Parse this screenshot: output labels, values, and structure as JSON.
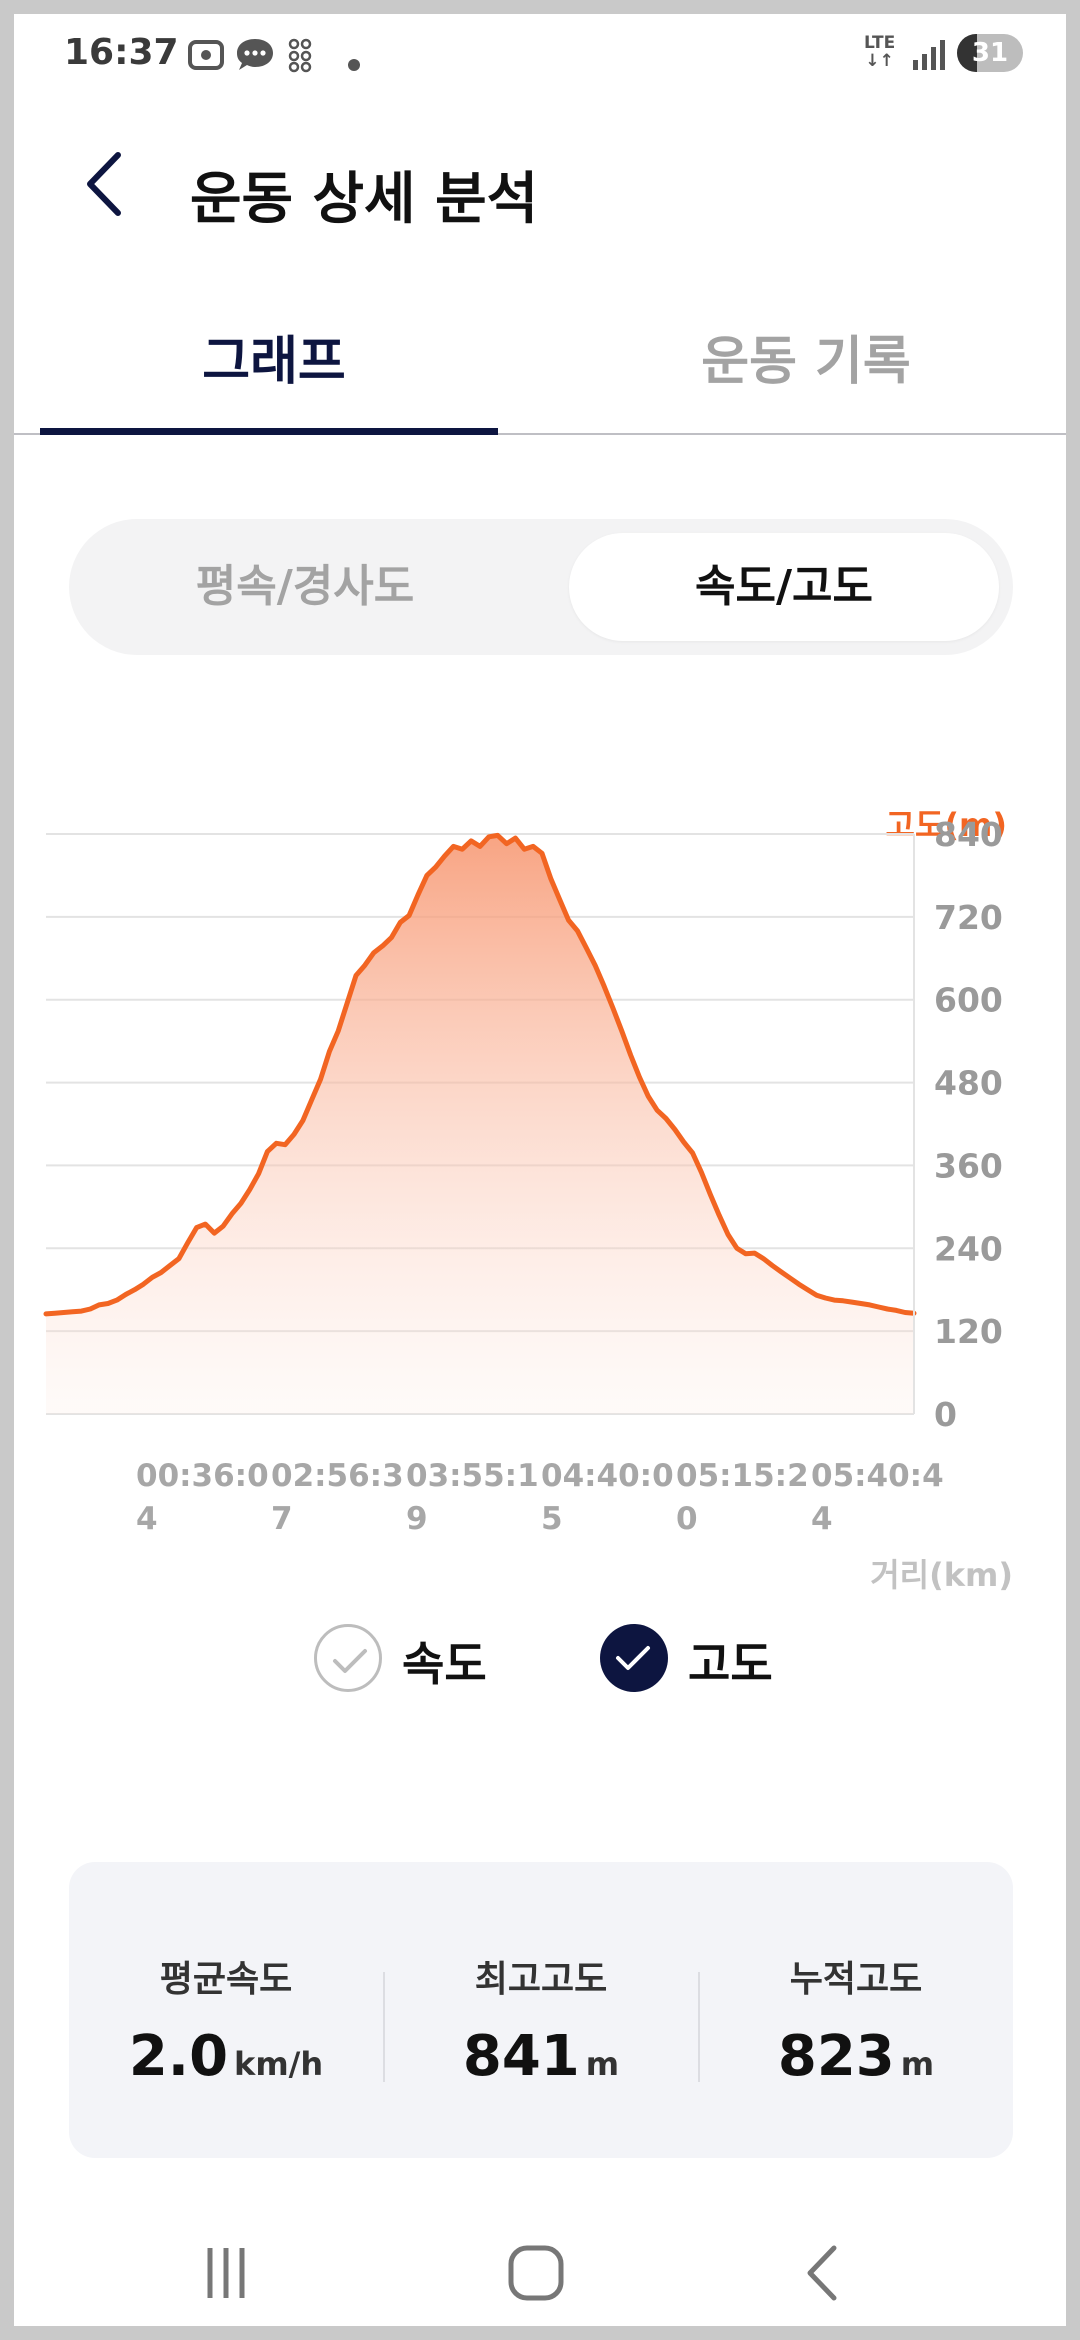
{
  "status_bar": {
    "time": "16:37",
    "network": "LTE",
    "battery": "31",
    "battery_level": 0.31
  },
  "header": {
    "title": "운동 상세 분석"
  },
  "tabs": [
    {
      "label": "그래프",
      "active": true
    },
    {
      "label": "운동 기록",
      "active": false
    }
  ],
  "segmented": {
    "left": "평속/경사도",
    "right": "속도/고도",
    "selected": "속도/고도"
  },
  "chart_data": {
    "type": "area",
    "y_axis": {
      "label": "고도(m)",
      "ticks": [
        0,
        120,
        240,
        360,
        480,
        600,
        720,
        840
      ],
      "range": [
        0,
        840
      ],
      "side": "right"
    },
    "x_axis": {
      "label": "거리(km)",
      "ticks": [
        "00:36:04",
        "02:56:37",
        "03:55:19",
        "04:40:05",
        "05:15:20",
        "05:40:44"
      ]
    },
    "series": [
      {
        "name": "고도",
        "color": "#f26522",
        "values": [
          145,
          146,
          147,
          148,
          149,
          152,
          158,
          160,
          165,
          173,
          180,
          188,
          198,
          205,
          215,
          225,
          248,
          270,
          275,
          262,
          272,
          290,
          305,
          325,
          348,
          380,
          392,
          390,
          405,
          425,
          455,
          485,
          525,
          555,
          595,
          635,
          650,
          668,
          678,
          690,
          712,
          722,
          752,
          780,
          792,
          808,
          822,
          818,
          830,
          822,
          836,
          838,
          826,
          834,
          818,
          822,
          812,
          775,
          745,
          715,
          700,
          675,
          650,
          620,
          588,
          555,
          520,
          488,
          460,
          440,
          428,
          412,
          394,
          378,
          350,
          318,
          288,
          260,
          240,
          232,
          233,
          225,
          215,
          206,
          197,
          188,
          180,
          172,
          168,
          165,
          164,
          162,
          160,
          158,
          155,
          152,
          150,
          147,
          146
        ]
      }
    ],
    "grid": true
  },
  "legend": [
    {
      "label": "속도",
      "checked": false
    },
    {
      "label": "고도",
      "checked": true
    }
  ],
  "stats": [
    {
      "label": "평균속도",
      "value": "2.0",
      "unit": "km/h"
    },
    {
      "label": "최고고도",
      "value": "841",
      "unit": "m"
    },
    {
      "label": "누적고도",
      "value": "823",
      "unit": "m"
    }
  ],
  "colors": {
    "accent": "#0d1540",
    "altitude": "#f26522"
  }
}
